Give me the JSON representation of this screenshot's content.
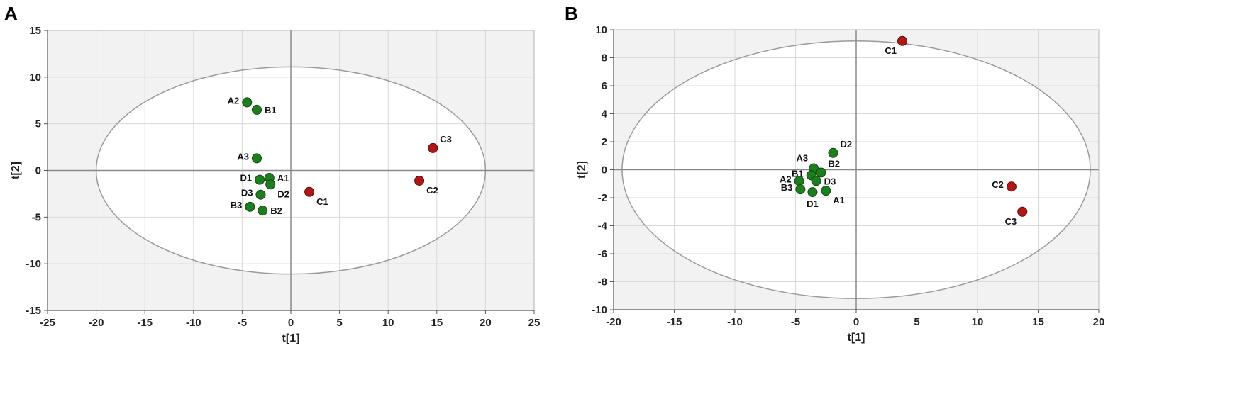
{
  "panels": [
    "A",
    "B"
  ],
  "chart_data": [
    {
      "type": "scatter",
      "panel": "A",
      "title": "",
      "xlabel": "t[1]",
      "ylabel": "t[2]",
      "xlim": [
        -25,
        25
      ],
      "ylim": [
        -15,
        15
      ],
      "xticks": [
        -25,
        -20,
        -15,
        -10,
        -5,
        0,
        5,
        10,
        15,
        20,
        25
      ],
      "yticks": [
        -15,
        -10,
        -5,
        0,
        5,
        10,
        15
      ],
      "grid": true,
      "ellipse": {
        "rx": 20,
        "ry": 11.1
      },
      "colors": {
        "group_green": "#1e7d1e",
        "group_red": "#b01818",
        "shade": "#f2f2f2"
      },
      "points": [
        {
          "label": "A2",
          "x": -4.5,
          "y": 7.3,
          "group": "green",
          "label_pos": "left"
        },
        {
          "label": "B1",
          "x": -3.5,
          "y": 6.5,
          "group": "green",
          "label_pos": "right"
        },
        {
          "label": "A3",
          "x": -3.5,
          "y": 1.3,
          "group": "green",
          "label_pos": "left"
        },
        {
          "label": "A1",
          "x": -2.2,
          "y": -0.8,
          "group": "green",
          "label_pos": "right"
        },
        {
          "label": "D1",
          "x": -3.2,
          "y": -1.0,
          "group": "green",
          "label_pos": "left"
        },
        {
          "label": "D2",
          "x": -2.1,
          "y": -1.5,
          "group": "green",
          "label_pos": "below-right"
        },
        {
          "label": "D3",
          "x": -3.1,
          "y": -2.6,
          "group": "green",
          "label_pos": "left"
        },
        {
          "label": "B3",
          "x": -4.2,
          "y": -3.9,
          "group": "green",
          "label_pos": "left"
        },
        {
          "label": "B2",
          "x": -2.9,
          "y": -4.3,
          "group": "green",
          "label_pos": "right"
        },
        {
          "label": "C1",
          "x": 1.9,
          "y": -2.3,
          "group": "red",
          "label_pos": "below-right"
        },
        {
          "label": "C3",
          "x": 14.6,
          "y": 2.4,
          "group": "red",
          "label_pos": "above-right"
        },
        {
          "label": "C2",
          "x": 13.2,
          "y": -1.1,
          "group": "red",
          "label_pos": "below-right"
        }
      ]
    },
    {
      "type": "scatter",
      "panel": "B",
      "title": "",
      "xlabel": "t[1]",
      "ylabel": "t[2]",
      "xlim": [
        -20,
        20
      ],
      "ylim": [
        -10,
        10
      ],
      "xticks": [
        -20,
        -15,
        -10,
        -5,
        0,
        5,
        10,
        15,
        20
      ],
      "yticks": [
        -10,
        -8,
        -6,
        -4,
        -2,
        0,
        2,
        4,
        6,
        8,
        10
      ],
      "grid": true,
      "ellipse": {
        "rx": 19.3,
        "ry": 9.2
      },
      "colors": {
        "group_green": "#1e7d1e",
        "group_red": "#b01818",
        "shade": "#f2f2f2"
      },
      "points": [
        {
          "label": "C1",
          "x": 3.8,
          "y": 9.2,
          "group": "red",
          "label_pos": "below-left"
        },
        {
          "label": "D2",
          "x": -1.9,
          "y": 1.2,
          "group": "green",
          "label_pos": "above-right"
        },
        {
          "label": "A3",
          "x": -3.5,
          "y": 0.1,
          "group": "green",
          "label_pos": "above-left"
        },
        {
          "label": "B2",
          "x": -2.9,
          "y": -0.2,
          "group": "green",
          "label_pos": "above-right"
        },
        {
          "label": "B1",
          "x": -3.7,
          "y": -0.4,
          "group": "green",
          "label_pos": "left"
        },
        {
          "label": "D3",
          "x": -3.3,
          "y": -0.8,
          "group": "green",
          "label_pos": "right"
        },
        {
          "label": "A2",
          "x": -4.7,
          "y": -0.8,
          "group": "green",
          "label_pos": "left"
        },
        {
          "label": "B3",
          "x": -4.6,
          "y": -1.4,
          "group": "green",
          "label_pos": "left"
        },
        {
          "label": "D1",
          "x": -3.6,
          "y": -1.6,
          "group": "green",
          "label_pos": "below"
        },
        {
          "label": "A1",
          "x": -2.5,
          "y": -1.5,
          "group": "green",
          "label_pos": "below-right"
        },
        {
          "label": "C2",
          "x": 12.8,
          "y": -1.2,
          "group": "red",
          "label_pos": "left"
        },
        {
          "label": "C3",
          "x": 13.7,
          "y": -3.0,
          "group": "red",
          "label_pos": "below-left"
        }
      ]
    }
  ]
}
